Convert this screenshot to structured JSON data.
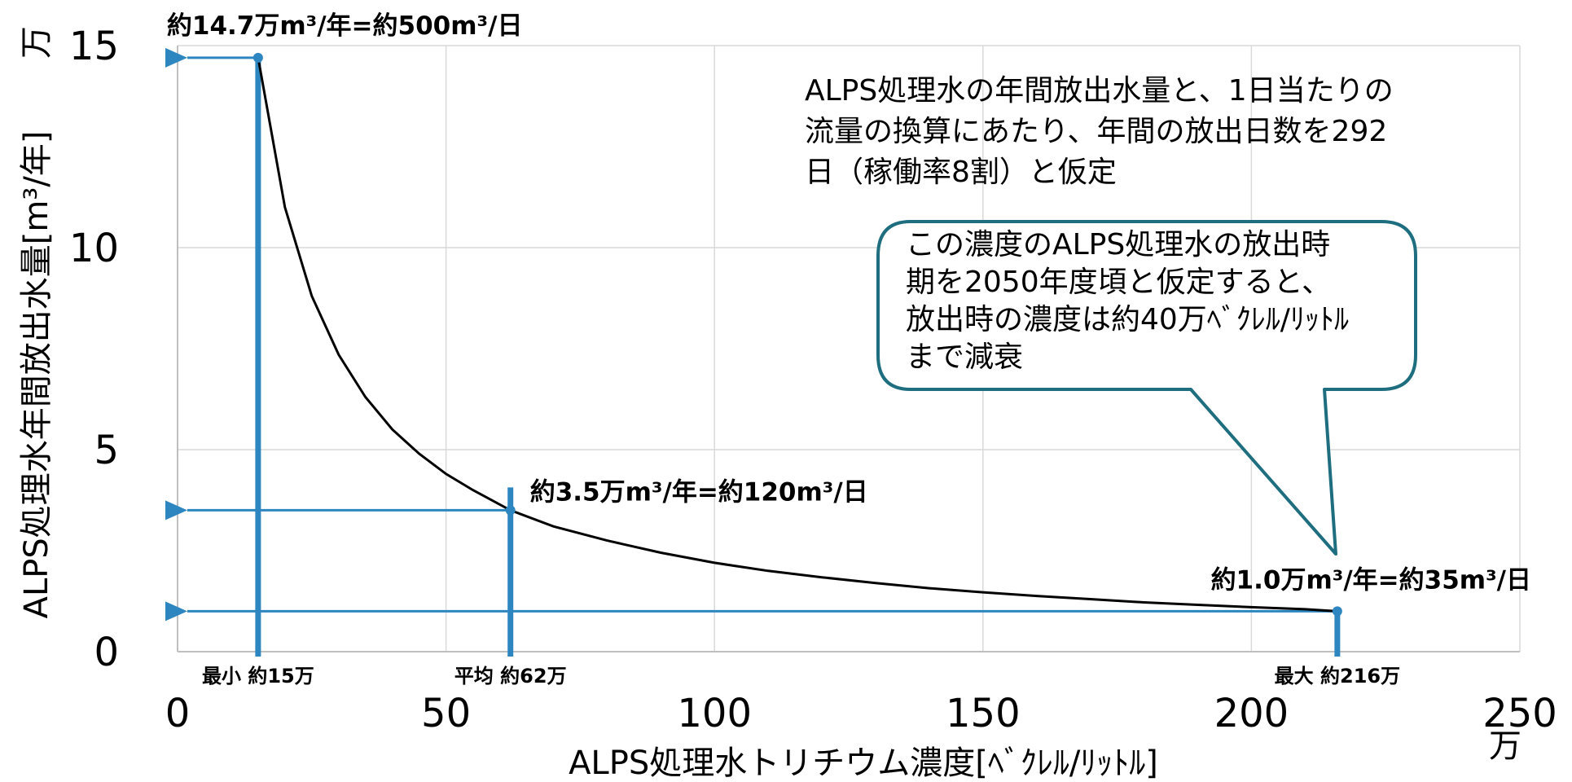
{
  "chart_data": {
    "type": "line",
    "title": "",
    "xlabel": "ALPS処理水トリチウム濃度[ﾍﾞｸﾚﾙ/ﾘｯﾄﾙ]",
    "xlabel_unit": "万",
    "ylabel": "ALPS処理水年間放出水量[m³/年]",
    "ylabel_unit": "万",
    "xlim": [
      0,
      250
    ],
    "ylim": [
      0,
      15
    ],
    "x_ticks": [
      "0",
      "50",
      "100",
      "150",
      "200",
      "250"
    ],
    "y_ticks": [
      "0",
      "5",
      "10",
      "15"
    ],
    "grid": true,
    "series": [
      {
        "x": [
          15,
          20,
          25,
          30,
          35,
          40,
          45,
          50,
          55,
          62,
          70,
          80,
          90,
          100,
          110,
          120,
          130,
          140,
          150,
          160,
          170,
          180,
          190,
          200,
          210,
          216
        ],
        "y": [
          14.7,
          11.0,
          8.8,
          7.35,
          6.3,
          5.5,
          4.9,
          4.4,
          4.0,
          3.5,
          3.1,
          2.75,
          2.45,
          2.2,
          2.0,
          1.84,
          1.7,
          1.57,
          1.47,
          1.38,
          1.3,
          1.22,
          1.16,
          1.1,
          1.05,
          1.0
        ]
      }
    ],
    "markers": [
      {
        "x": 15,
        "y": 14.7,
        "callout": "約14.7万m³/年=約500m³/日",
        "label": "最小 約15万"
      },
      {
        "x": 62,
        "y": 3.5,
        "callout": "約3.5万m³/年=約120m³/日",
        "label": "平均 約62万"
      },
      {
        "x": 216,
        "y": 1.0,
        "callout": "約1.0万m³/年=約35m³/日",
        "label": "最大 約216万"
      }
    ],
    "annotations": {
      "note": [
        "ALPS処理水の年間放出水量と、1日当たりの",
        "流量の換算にあたり、年間の放出日数を292",
        "日（稼働率8割）と仮定"
      ],
      "bubble": [
        "この濃度のALPS処理水の放出時",
        "期を2050年度頃と仮定すると、",
        "放出時の濃度は約40万ﾍﾞｸﾚﾙ/ﾘｯﾄﾙ",
        "まで減衰"
      ]
    },
    "colors": {
      "curve": "#000000",
      "marker": "#2e86c1",
      "bubble_border": "#1f6e80",
      "grid": "#d9d9d9"
    }
  }
}
